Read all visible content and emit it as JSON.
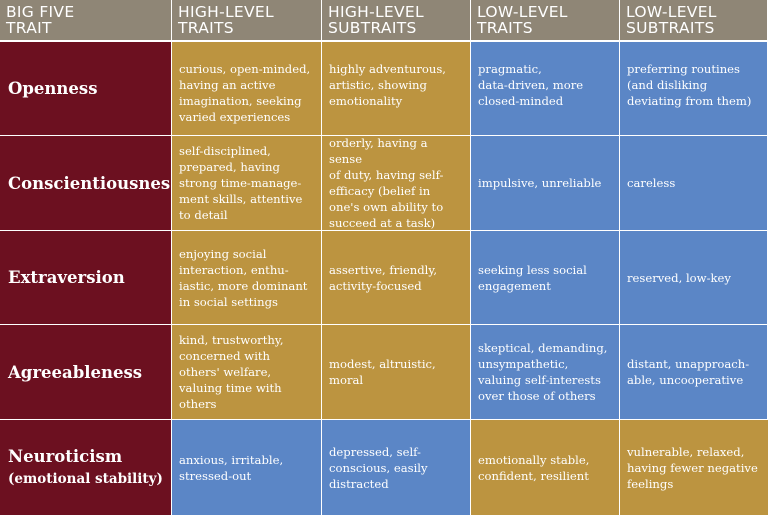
{
  "headers": [
    "BIG FIVE\nTRAIT",
    "HIGH-LEVEL\nTRAITS",
    "HIGH-LEVEL\nSUBTRAITS",
    "LOW-LEVEL\nTRAITS",
    "LOW-LEVEL\nSUBTRAITS"
  ],
  "rows": [
    {
      "trait": "Openness",
      "trait_sub": "",
      "high_traits": "curious, open-minded,\nhaving an active\nimagination, seeking\nvaried experiences",
      "high_subtraits": "highly adventurous,\nartistic, showing\nemotionality",
      "low_traits": "pragmatic,\ndata-driven, more\nclosed-minded",
      "low_subtraits": "preferring routines\n(and disliking\ndeviating from them)"
    },
    {
      "trait": "Conscientiousness",
      "trait_sub": "",
      "high_traits": "self-disciplined,\nprepared, having\nstrong time-manage-\nment skills, attentive\nto detail",
      "high_subtraits": "orderly, having a sense\nof duty, having self-\nefficacy (belief in\none's own ability to\nsucceed at a task)",
      "low_traits": "impulsive, unreliable",
      "low_subtraits": "careless"
    },
    {
      "trait": "Extraversion",
      "trait_sub": "",
      "high_traits": "enjoying social\ninteraction, enthu-\niastic, more dominant\nin social settings",
      "high_subtraits": "assertive, friendly,\nactivity-focused",
      "low_traits": "seeking less social\nengagement",
      "low_subtraits": "reserved, low-key"
    },
    {
      "trait": "Agreeableness",
      "trait_sub": "",
      "high_traits": "kind, trustworthy,\nconcerned with\nothers' welfare,\nvaluing time with\nothers",
      "high_subtraits": "modest, altruistic,\nmoral",
      "low_traits": "skeptical, demanding,\nunsympathetic,\nvaluing self-interests\nover those of others",
      "low_subtraits": "distant, unapproach-\nable, uncooperative"
    },
    {
      "trait": "Neuroticism",
      "trait_sub": "(emotional stability)",
      "high_traits": "anxious, irritable,\nstressed-out",
      "high_subtraits": "depressed, self-\nconscious, easily\ndistracted",
      "low_traits": "emotionally stable,\nconfident, resilient",
      "low_subtraits": "vulnerable, relaxed,\nhaving fewer negative\nfeelings"
    }
  ],
  "colors": {
    "header_bg": "#8f8676",
    "trait_bg": "#6c1020",
    "gold": "#bc9440",
    "blue": "#5b86c6"
  }
}
